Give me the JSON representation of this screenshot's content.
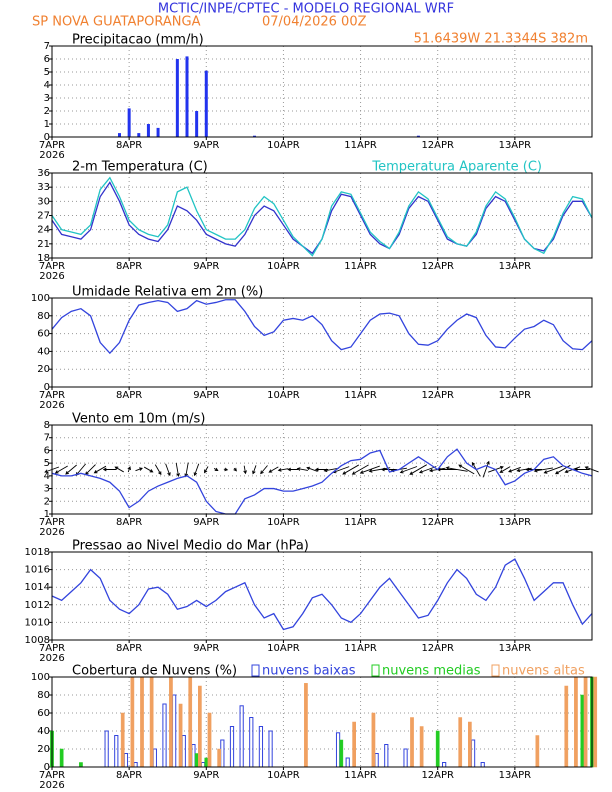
{
  "header": {
    "title": "MCTIC/INPE/CPTEC - MODELO REGIONAL WRF",
    "location": "SP NOVA GUATAPORANGA",
    "date": "07/04/2026 00Z",
    "coords": "51.6439W 21.3344S 382m"
  },
  "chart_data": [
    {
      "type": "bar",
      "title": "Precipitacao (mm/h)",
      "color": "#2233ee",
      "grid": true,
      "x": [
        0,
        3,
        6,
        9,
        12,
        15,
        18,
        21,
        24,
        27,
        30,
        33,
        36,
        39,
        42,
        45,
        48,
        51,
        54,
        57,
        60,
        63,
        66,
        69,
        72,
        75,
        78,
        81,
        84,
        87,
        90,
        93,
        96,
        99,
        102,
        105,
        108,
        111,
        114,
        117,
        120,
        123,
        126,
        129,
        132,
        135,
        138,
        141,
        144,
        147,
        150,
        153,
        156,
        159,
        162,
        165,
        168
      ],
      "values": [
        0,
        0,
        0,
        0,
        0,
        0,
        0,
        0.3,
        2.2,
        0.3,
        1.0,
        0.7,
        0,
        6.0,
        6.2,
        2.0,
        5.1,
        0,
        0,
        0,
        0,
        0.1,
        0,
        0,
        0,
        0,
        0,
        0,
        0,
        0,
        0,
        0,
        0,
        0,
        0,
        0,
        0,
        0,
        0.1,
        0,
        0,
        0,
        0,
        0,
        0,
        0,
        0,
        0,
        0,
        0,
        0,
        0,
        0,
        0,
        0,
        0,
        0
      ],
      "xlim": [
        0,
        168
      ],
      "xticks": [
        {
          "value": 0,
          "label": "7APR"
        },
        {
          "value": 24,
          "label": "8APR"
        },
        {
          "value": 48,
          "label": "9APR"
        },
        {
          "value": 72,
          "label": "10APR"
        },
        {
          "value": 96,
          "label": "11APR"
        },
        {
          "value": 120,
          "label": "12APR"
        },
        {
          "value": 144,
          "label": "13APR"
        }
      ],
      "year": "2026",
      "ylim": [
        0,
        7
      ],
      "yticks": [
        0,
        1,
        2,
        3,
        4,
        5,
        6,
        7
      ]
    },
    {
      "type": "line",
      "title": "2-m Temperatura (C)",
      "grid": true,
      "x": [
        0,
        3,
        6,
        9,
        12,
        15,
        18,
        21,
        24,
        27,
        30,
        33,
        36,
        39,
        42,
        45,
        48,
        51,
        54,
        57,
        60,
        63,
        66,
        69,
        72,
        75,
        78,
        81,
        84,
        87,
        90,
        93,
        96,
        99,
        102,
        105,
        108,
        111,
        114,
        117,
        120,
        123,
        126,
        129,
        132,
        135,
        138,
        141,
        144,
        147,
        150,
        153,
        156,
        159,
        162,
        165,
        168
      ],
      "series": [
        {
          "color": "#3333cc",
          "values": [
            26,
            23,
            22.5,
            22,
            24,
            31,
            34,
            30,
            25,
            23,
            22,
            21.5,
            24,
            29,
            28,
            26,
            23,
            22,
            21,
            20.5,
            23,
            27,
            29,
            28,
            25,
            22,
            20.5,
            19,
            22,
            28,
            31.5,
            31,
            27,
            23,
            21,
            20,
            23,
            28.5,
            31,
            30,
            26,
            22,
            21,
            20.5,
            23,
            28.5,
            31,
            30,
            26,
            22,
            20,
            19.5,
            22,
            27,
            30,
            30,
            26.5
          ]
        },
        {
          "name": "Temperatura Aparente (C)",
          "color": "#22c4c4",
          "values": [
            27,
            24,
            23.5,
            23,
            25,
            32.5,
            35,
            31,
            26,
            24,
            23,
            22.5,
            25,
            32,
            33,
            28,
            24,
            23,
            22,
            22,
            24,
            28.5,
            31,
            29.5,
            26,
            22.5,
            20.5,
            18.5,
            22,
            29,
            32,
            31.5,
            27.5,
            23.5,
            21.5,
            20,
            23.5,
            29,
            32,
            30.5,
            26.5,
            22.5,
            21,
            20.5,
            23.5,
            29,
            32,
            30.5,
            26.5,
            22,
            20,
            19,
            22.5,
            27.5,
            31,
            30.5,
            26.5
          ]
        }
      ],
      "xlim": [
        0,
        168
      ],
      "xticks": [
        {
          "value": 0,
          "label": "7APR"
        },
        {
          "value": 24,
          "label": "8APR"
        },
        {
          "value": 48,
          "label": "9APR"
        },
        {
          "value": 72,
          "label": "10APR"
        },
        {
          "value": 96,
          "label": "11APR"
        },
        {
          "value": 120,
          "label": "12APR"
        },
        {
          "value": 144,
          "label": "13APR"
        }
      ],
      "year": "2026",
      "ylim": [
        18,
        36
      ],
      "yticks": [
        18,
        21,
        24,
        27,
        30,
        33,
        36
      ]
    },
    {
      "type": "line",
      "title": "Umidade Relativa em 2m (%)",
      "grid": true,
      "x": [
        0,
        3,
        6,
        9,
        12,
        15,
        18,
        21,
        24,
        27,
        30,
        33,
        36,
        39,
        42,
        45,
        48,
        51,
        54,
        57,
        60,
        63,
        66,
        69,
        72,
        75,
        78,
        81,
        84,
        87,
        90,
        93,
        96,
        99,
        102,
        105,
        108,
        111,
        114,
        117,
        120,
        123,
        126,
        129,
        132,
        135,
        138,
        141,
        144,
        147,
        150,
        153,
        156,
        159,
        162,
        165,
        168
      ],
      "series": [
        {
          "color": "#3344dd",
          "values": [
            65,
            78,
            85,
            88,
            80,
            50,
            38,
            50,
            75,
            92,
            95,
            97,
            95,
            85,
            88,
            97,
            93,
            95,
            98,
            98,
            85,
            68,
            58,
            62,
            75,
            77,
            75,
            80,
            70,
            52,
            42,
            45,
            60,
            75,
            82,
            83,
            80,
            60,
            48,
            47,
            52,
            65,
            75,
            82,
            78,
            58,
            45,
            44,
            55,
            65,
            68,
            75,
            70,
            52,
            43,
            42,
            52
          ]
        }
      ],
      "xlim": [
        0,
        168
      ],
      "xticks": [
        {
          "value": 0,
          "label": "7APR"
        },
        {
          "value": 24,
          "label": "8APR"
        },
        {
          "value": 48,
          "label": "9APR"
        },
        {
          "value": 72,
          "label": "10APR"
        },
        {
          "value": 96,
          "label": "11APR"
        },
        {
          "value": 120,
          "label": "12APR"
        },
        {
          "value": 144,
          "label": "13APR"
        }
      ],
      "year": "2026",
      "ylim": [
        0,
        100
      ],
      "yticks": [
        0,
        20,
        40,
        60,
        80,
        100
      ]
    },
    {
      "type": "line",
      "title": "Vento em 10m (m/s)",
      "grid": true,
      "x": [
        0,
        3,
        6,
        9,
        12,
        15,
        18,
        21,
        24,
        27,
        30,
        33,
        36,
        39,
        42,
        45,
        48,
        51,
        54,
        57,
        60,
        63,
        66,
        69,
        72,
        75,
        78,
        81,
        84,
        87,
        90,
        93,
        96,
        99,
        102,
        105,
        108,
        111,
        114,
        117,
        120,
        123,
        126,
        129,
        132,
        135,
        138,
        141,
        144,
        147,
        150,
        153,
        156,
        159,
        162,
        165,
        168
      ],
      "series": [
        {
          "color": "#3344dd",
          "values": [
            4.2,
            4.0,
            4.0,
            4.2,
            4.0,
            3.8,
            3.5,
            2.8,
            1.5,
            2.0,
            2.8,
            3.2,
            3.5,
            3.8,
            4.0,
            3.5,
            2.0,
            1.2,
            1.0,
            1.0,
            2.2,
            2.5,
            3.0,
            3.0,
            2.8,
            2.8,
            3.0,
            3.2,
            3.5,
            4.2,
            4.8,
            5.2,
            5.3,
            5.8,
            6.0,
            4.3,
            4.5,
            5.0,
            5.5,
            5.0,
            4.5,
            5.5,
            6.1,
            5.0,
            4.5,
            4.8,
            4.5,
            3.3,
            3.6,
            4.2,
            4.5,
            5.3,
            5.5,
            4.8,
            4.5,
            4.2,
            4.0
          ]
        }
      ],
      "directions": [
        70,
        60,
        50,
        40,
        45,
        60,
        90,
        120,
        200,
        250,
        300,
        330,
        340,
        350,
        10,
        20,
        30,
        300,
        280,
        320,
        350,
        20,
        40,
        60,
        80,
        90,
        100,
        110,
        90,
        80,
        70,
        60,
        60,
        70,
        80,
        90,
        80,
        70,
        60,
        70,
        80,
        90,
        100,
        120,
        150,
        200,
        250,
        60,
        70,
        80,
        90,
        80,
        70,
        60,
        70,
        90,
        110
      ],
      "xlim": [
        0,
        168
      ],
      "xticks": [
        {
          "value": 0,
          "label": "7APR"
        },
        {
          "value": 24,
          "label": "8APR"
        },
        {
          "value": 48,
          "label": "9APR"
        },
        {
          "value": 72,
          "label": "10APR"
        },
        {
          "value": 96,
          "label": "11APR"
        },
        {
          "value": 120,
          "label": "12APR"
        },
        {
          "value": 144,
          "label": "13APR"
        }
      ],
      "year": "2026",
      "ylim": [
        1,
        8
      ],
      "yticks": [
        1,
        2,
        3,
        4,
        5,
        6,
        7,
        8
      ]
    },
    {
      "type": "line",
      "title": "Pressao ao Nivel Medio do Mar (hPa)",
      "grid": true,
      "x": [
        0,
        3,
        6,
        9,
        12,
        15,
        18,
        21,
        24,
        27,
        30,
        33,
        36,
        39,
        42,
        45,
        48,
        51,
        54,
        57,
        60,
        63,
        66,
        69,
        72,
        75,
        78,
        81,
        84,
        87,
        90,
        93,
        96,
        99,
        102,
        105,
        108,
        111,
        114,
        117,
        120,
        123,
        126,
        129,
        132,
        135,
        138,
        141,
        144,
        147,
        150,
        153,
        156,
        159,
        162,
        165,
        168
      ],
      "series": [
        {
          "color": "#3344dd",
          "values": [
            1013,
            1012.5,
            1013.5,
            1014.5,
            1016,
            1015,
            1012.5,
            1011.5,
            1011,
            1012,
            1013.8,
            1014,
            1013.2,
            1011.5,
            1011.8,
            1012.5,
            1011.8,
            1012.5,
            1013.5,
            1014,
            1014.5,
            1012,
            1010.5,
            1011,
            1009.2,
            1009.5,
            1011,
            1012.8,
            1013.2,
            1012,
            1010.5,
            1010,
            1011,
            1012.5,
            1014,
            1015,
            1013.5,
            1012,
            1010.5,
            1010.8,
            1012.5,
            1014.5,
            1016,
            1015,
            1013.2,
            1012.5,
            1014,
            1016.5,
            1017.2,
            1015,
            1012.5,
            1013.5,
            1014.5,
            1014.5,
            1012,
            1009.8,
            1011
          ]
        }
      ],
      "xlim": [
        0,
        168
      ],
      "xticks": [
        {
          "value": 0,
          "label": "7APR"
        },
        {
          "value": 24,
          "label": "8APR"
        },
        {
          "value": 48,
          "label": "9APR"
        },
        {
          "value": 72,
          "label": "10APR"
        },
        {
          "value": 96,
          "label": "11APR"
        },
        {
          "value": 120,
          "label": "12APR"
        },
        {
          "value": 144,
          "label": "13APR"
        }
      ],
      "year": "2026",
      "ylim": [
        1008,
        1018
      ],
      "yticks": [
        1008,
        1010,
        1012,
        1014,
        1016,
        1018
      ]
    },
    {
      "type": "bar",
      "title": "Cobertura de Nuvens (%)",
      "grid": true,
      "x": [
        0,
        3,
        6,
        9,
        12,
        15,
        18,
        21,
        24,
        27,
        30,
        33,
        36,
        39,
        42,
        45,
        48,
        51,
        54,
        57,
        60,
        63,
        66,
        69,
        72,
        75,
        78,
        81,
        84,
        87,
        90,
        93,
        96,
        99,
        102,
        105,
        108,
        111,
        114,
        117,
        120,
        123,
        126,
        129,
        132,
        135,
        138,
        141,
        144,
        147,
        150,
        153,
        156,
        159,
        162,
        165,
        168
      ],
      "series": [
        {
          "name": "nuvens baixas",
          "color": "#3344dd",
          "values": [
            0,
            0,
            0,
            0,
            0,
            0,
            40,
            35,
            15,
            5,
            0,
            20,
            70,
            80,
            35,
            25,
            5,
            0,
            30,
            45,
            68,
            55,
            45,
            40,
            0,
            0,
            0,
            0,
            0,
            0,
            38,
            10,
            0,
            0,
            15,
            25,
            0,
            20,
            0,
            0,
            0,
            5,
            0,
            0,
            30,
            5,
            0,
            0,
            0,
            0,
            0,
            0,
            0,
            0,
            0,
            0,
            0
          ]
        },
        {
          "name": "nuvens medias",
          "color": "#22cc22",
          "values": [
            40,
            20,
            0,
            5,
            0,
            0,
            0,
            0,
            0,
            0,
            0,
            0,
            0,
            0,
            0,
            15,
            10,
            0,
            0,
            0,
            0,
            0,
            0,
            0,
            0,
            0,
            0,
            0,
            0,
            0,
            30,
            0,
            0,
            0,
            0,
            0,
            0,
            0,
            0,
            0,
            40,
            0,
            0,
            0,
            0,
            0,
            0,
            0,
            0,
            0,
            0,
            0,
            0,
            0,
            0,
            80,
            100
          ]
        },
        {
          "name": "nuvens altas",
          "color": "#f0a060",
          "values": [
            0,
            0,
            0,
            0,
            0,
            0,
            0,
            60,
            100,
            100,
            100,
            0,
            100,
            70,
            100,
            90,
            60,
            20,
            0,
            0,
            0,
            0,
            0,
            0,
            0,
            0,
            93,
            0,
            0,
            0,
            0,
            50,
            0,
            60,
            0,
            0,
            0,
            55,
            45,
            0,
            0,
            0,
            55,
            50,
            0,
            0,
            0,
            0,
            0,
            0,
            35,
            0,
            0,
            90,
            100,
            100,
            100
          ]
        }
      ],
      "xlim": [
        0,
        168
      ],
      "xticks": [
        {
          "value": 0,
          "label": "7APR"
        },
        {
          "value": 24,
          "label": "8APR"
        },
        {
          "value": 48,
          "label": "9APR"
        },
        {
          "value": 72,
          "label": "10APR"
        },
        {
          "value": 96,
          "label": "11APR"
        },
        {
          "value": 120,
          "label": "12APR"
        },
        {
          "value": 144,
          "label": "13APR"
        }
      ],
      "year": "2026",
      "ylim": [
        0,
        100
      ],
      "yticks": [
        0,
        20,
        40,
        60,
        80,
        100
      ]
    }
  ]
}
